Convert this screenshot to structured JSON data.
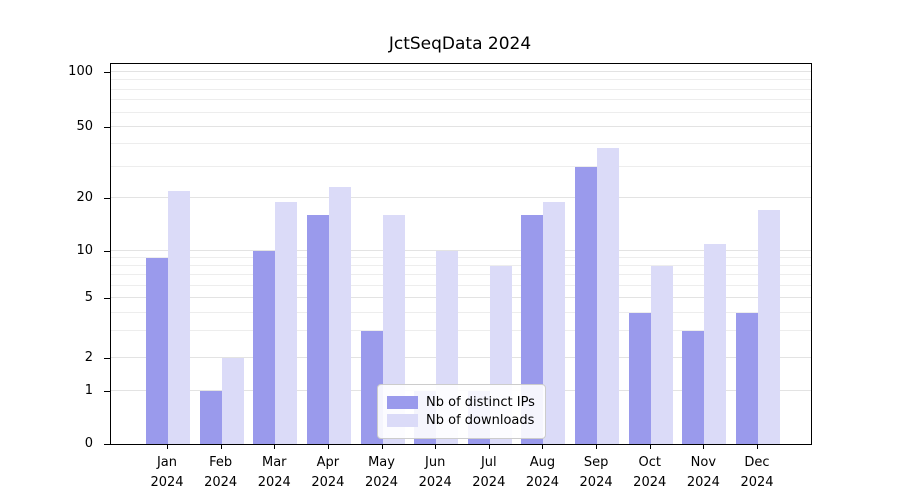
{
  "chart_data": {
    "type": "bar",
    "title": "JctSeqData 2024",
    "categories": [
      "Jan 2024",
      "Feb 2024",
      "Mar 2024",
      "Apr 2024",
      "May 2024",
      "Jun 2024",
      "Jul 2024",
      "Aug 2024",
      "Sep 2024",
      "Oct 2024",
      "Nov 2024",
      "Dec 2024"
    ],
    "series": [
      {
        "name": "Nb of distinct IPs",
        "color": "#9a9aec",
        "values": [
          9,
          1,
          10,
          16,
          3,
          1,
          1,
          16,
          30,
          4,
          3,
          4
        ]
      },
      {
        "name": "Nb of downloads",
        "color": "#dbdbf8",
        "values": [
          22,
          2,
          19,
          23,
          16,
          10,
          8,
          19,
          38,
          8,
          11,
          17
        ]
      }
    ],
    "yscale": "symlog",
    "y_ticks": [
      0,
      1,
      2,
      5,
      10,
      20,
      50,
      100
    ],
    "ylim": [
      0,
      115
    ],
    "xlabel": "",
    "ylabel": "",
    "grid": true,
    "legend_position": "lower center"
  }
}
